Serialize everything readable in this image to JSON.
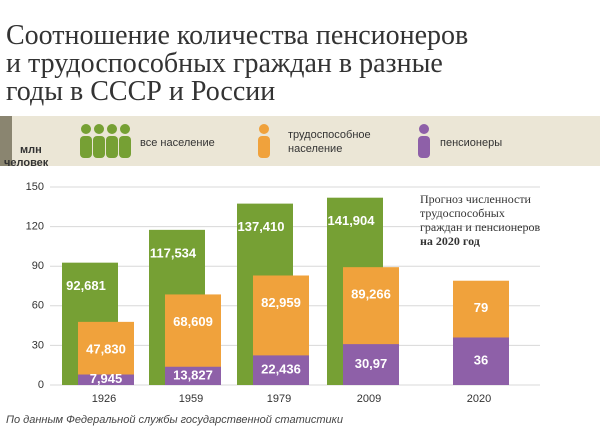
{
  "chart_data": {
    "type": "overlapping-bar",
    "title": [
      "Соотношение количества пенсионеров",
      "и трудоспособных граждан в разные",
      "годы в СССР и России"
    ],
    "ylabel": [
      "млн",
      "человек"
    ],
    "categories": [
      "1926",
      "1959",
      "1979",
      "2009",
      "2020"
    ],
    "series": [
      {
        "name": "все население",
        "color": "#76a034",
        "values": [
          92.681,
          117.534,
          137.41,
          141.904,
          null
        ],
        "value_labels": [
          "92,681",
          "117,534",
          "137,410",
          "141,904",
          null
        ]
      },
      {
        "name": "трудоспособное население",
        "color": "#f0a23c",
        "values": [
          47.83,
          68.609,
          82.959,
          89.266,
          79
        ],
        "value_labels": [
          "47,830",
          "68,609",
          "82,959",
          "89,266",
          "79"
        ]
      },
      {
        "name": "пенсионеры",
        "color": "#8e60a8",
        "values": [
          7.945,
          13.827,
          22.436,
          30.97,
          36
        ],
        "value_labels": [
          "7,945",
          "13,827",
          "22,436",
          "30,97",
          "36"
        ]
      }
    ],
    "ylim": [
      0,
      150
    ],
    "yticks": [
      0,
      30,
      60,
      90,
      120,
      150
    ],
    "grid": true,
    "annotation": [
      "Прогноз численности",
      "трудоспособных",
      "граждан и пенсионеров",
      "на 2020 год"
    ],
    "source": "По данным Федеральной службы государственной статистики"
  }
}
